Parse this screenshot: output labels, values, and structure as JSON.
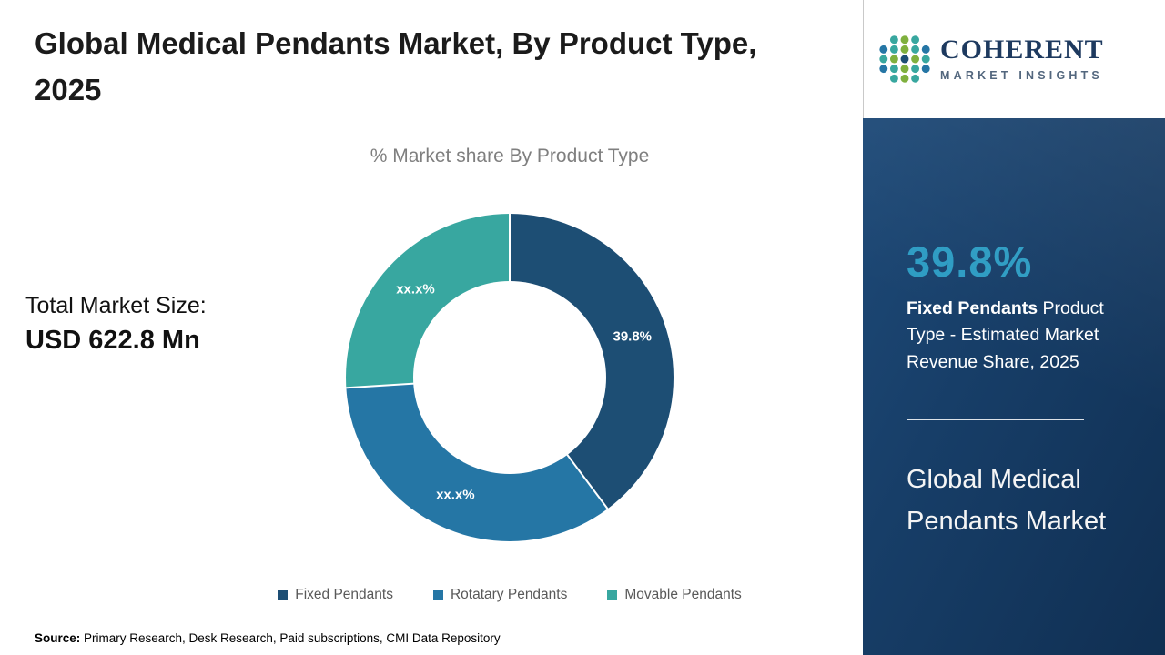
{
  "header": {
    "title": "Global Medical Pendants Market, By Product Type, 2025"
  },
  "chart_data": {
    "type": "pie",
    "donut": true,
    "title": "% Market share By Product Type",
    "categories": [
      "Fixed Pendants",
      "Rotatary Pendants",
      "Movable Pendants"
    ],
    "values": [
      39.8,
      34.2,
      26.0
    ],
    "slice_labels": [
      "39.8%",
      "xx.x%",
      "xx.x%"
    ],
    "colors": [
      "#1d4e74",
      "#2576a5",
      "#38a7a0"
    ],
    "legend_position": "bottom"
  },
  "stats": {
    "total_label": "Total Market Size:",
    "total_value": "USD 622.8 Mn"
  },
  "sidebar": {
    "logo_title": "COHERENT",
    "logo_subtitle": "MARKET INSIGHTS",
    "highlight_value": "39.8%",
    "highlight_category": "Fixed Pendants",
    "highlight_rest": "  Product Type - Estimated Market Revenue Share, 2025",
    "market_name": "Global Medical Pendants Market",
    "accent_color": "#2d9cc3"
  },
  "footer": {
    "source_label": "Source:",
    "source_text": " Primary Research, Desk Research, Paid subscriptions, CMI Data Repository"
  }
}
